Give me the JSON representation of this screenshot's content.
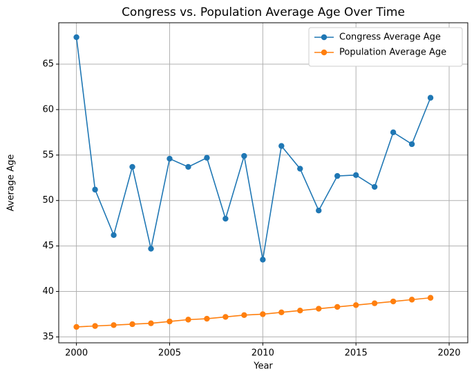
{
  "chart_data": {
    "type": "line",
    "title": "Congress vs. Population Average Age Over Time",
    "x_label": "Year",
    "y_label": "Average Age",
    "x": [
      2000,
      2001,
      2002,
      2003,
      2004,
      2005,
      2006,
      2007,
      2008,
      2009,
      2010,
      2011,
      2012,
      2013,
      2014,
      2015,
      2016,
      2017,
      2018,
      2019
    ],
    "series": [
      {
        "name": "Congress Average Age",
        "color": "#1f77b4",
        "values": [
          67.96,
          51.2,
          46.2,
          53.7,
          44.7,
          54.6,
          53.7,
          54.7,
          48.0,
          54.9,
          43.5,
          56.0,
          53.5,
          48.9,
          52.7,
          52.8,
          51.5,
          57.5,
          56.2,
          61.3
        ]
      },
      {
        "name": "Population Average Age",
        "color": "#ff7f0e",
        "values": [
          36.1,
          36.2,
          36.3,
          36.4,
          36.5,
          36.7,
          36.9,
          37.0,
          37.2,
          37.4,
          37.5,
          37.7,
          37.9,
          38.1,
          38.3,
          38.5,
          38.7,
          38.9,
          39.1,
          39.3
        ]
      }
    ],
    "xlim": [
      1999.05,
      2021.0
    ],
    "xticks": [
      2000,
      2005,
      2010,
      2015,
      2020
    ],
    "ylim": [
      34.35,
      69.55
    ],
    "yticks": [
      35,
      40,
      45,
      50,
      55,
      60,
      65
    ],
    "grid": true,
    "legend": "upper right"
  }
}
